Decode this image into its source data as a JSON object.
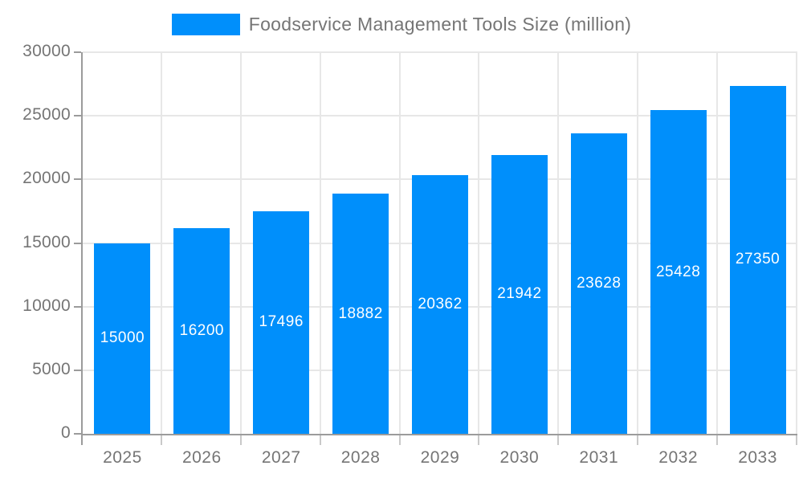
{
  "chart_data": {
    "type": "bar",
    "title": "Foodservice Management Tools Size (million)",
    "categories": [
      "2025",
      "2026",
      "2027",
      "2028",
      "2029",
      "2030",
      "2031",
      "2032",
      "2033"
    ],
    "values": [
      15000,
      16200,
      17496,
      18882,
      20362,
      21942,
      23628,
      25428,
      27350
    ],
    "xlabel": "",
    "ylabel": "",
    "ylim": [
      0,
      30000
    ],
    "yticks": [
      0,
      5000,
      10000,
      15000,
      20000,
      25000,
      30000
    ],
    "grid": true,
    "legend_position": "top",
    "colors": {
      "bar": "#008FFB",
      "bar_value_label": "#ffffff",
      "axis_text": "#757575",
      "gridline": "#e7e7e7",
      "axis_line": "#9b9b9b",
      "background": "#ffffff"
    }
  }
}
